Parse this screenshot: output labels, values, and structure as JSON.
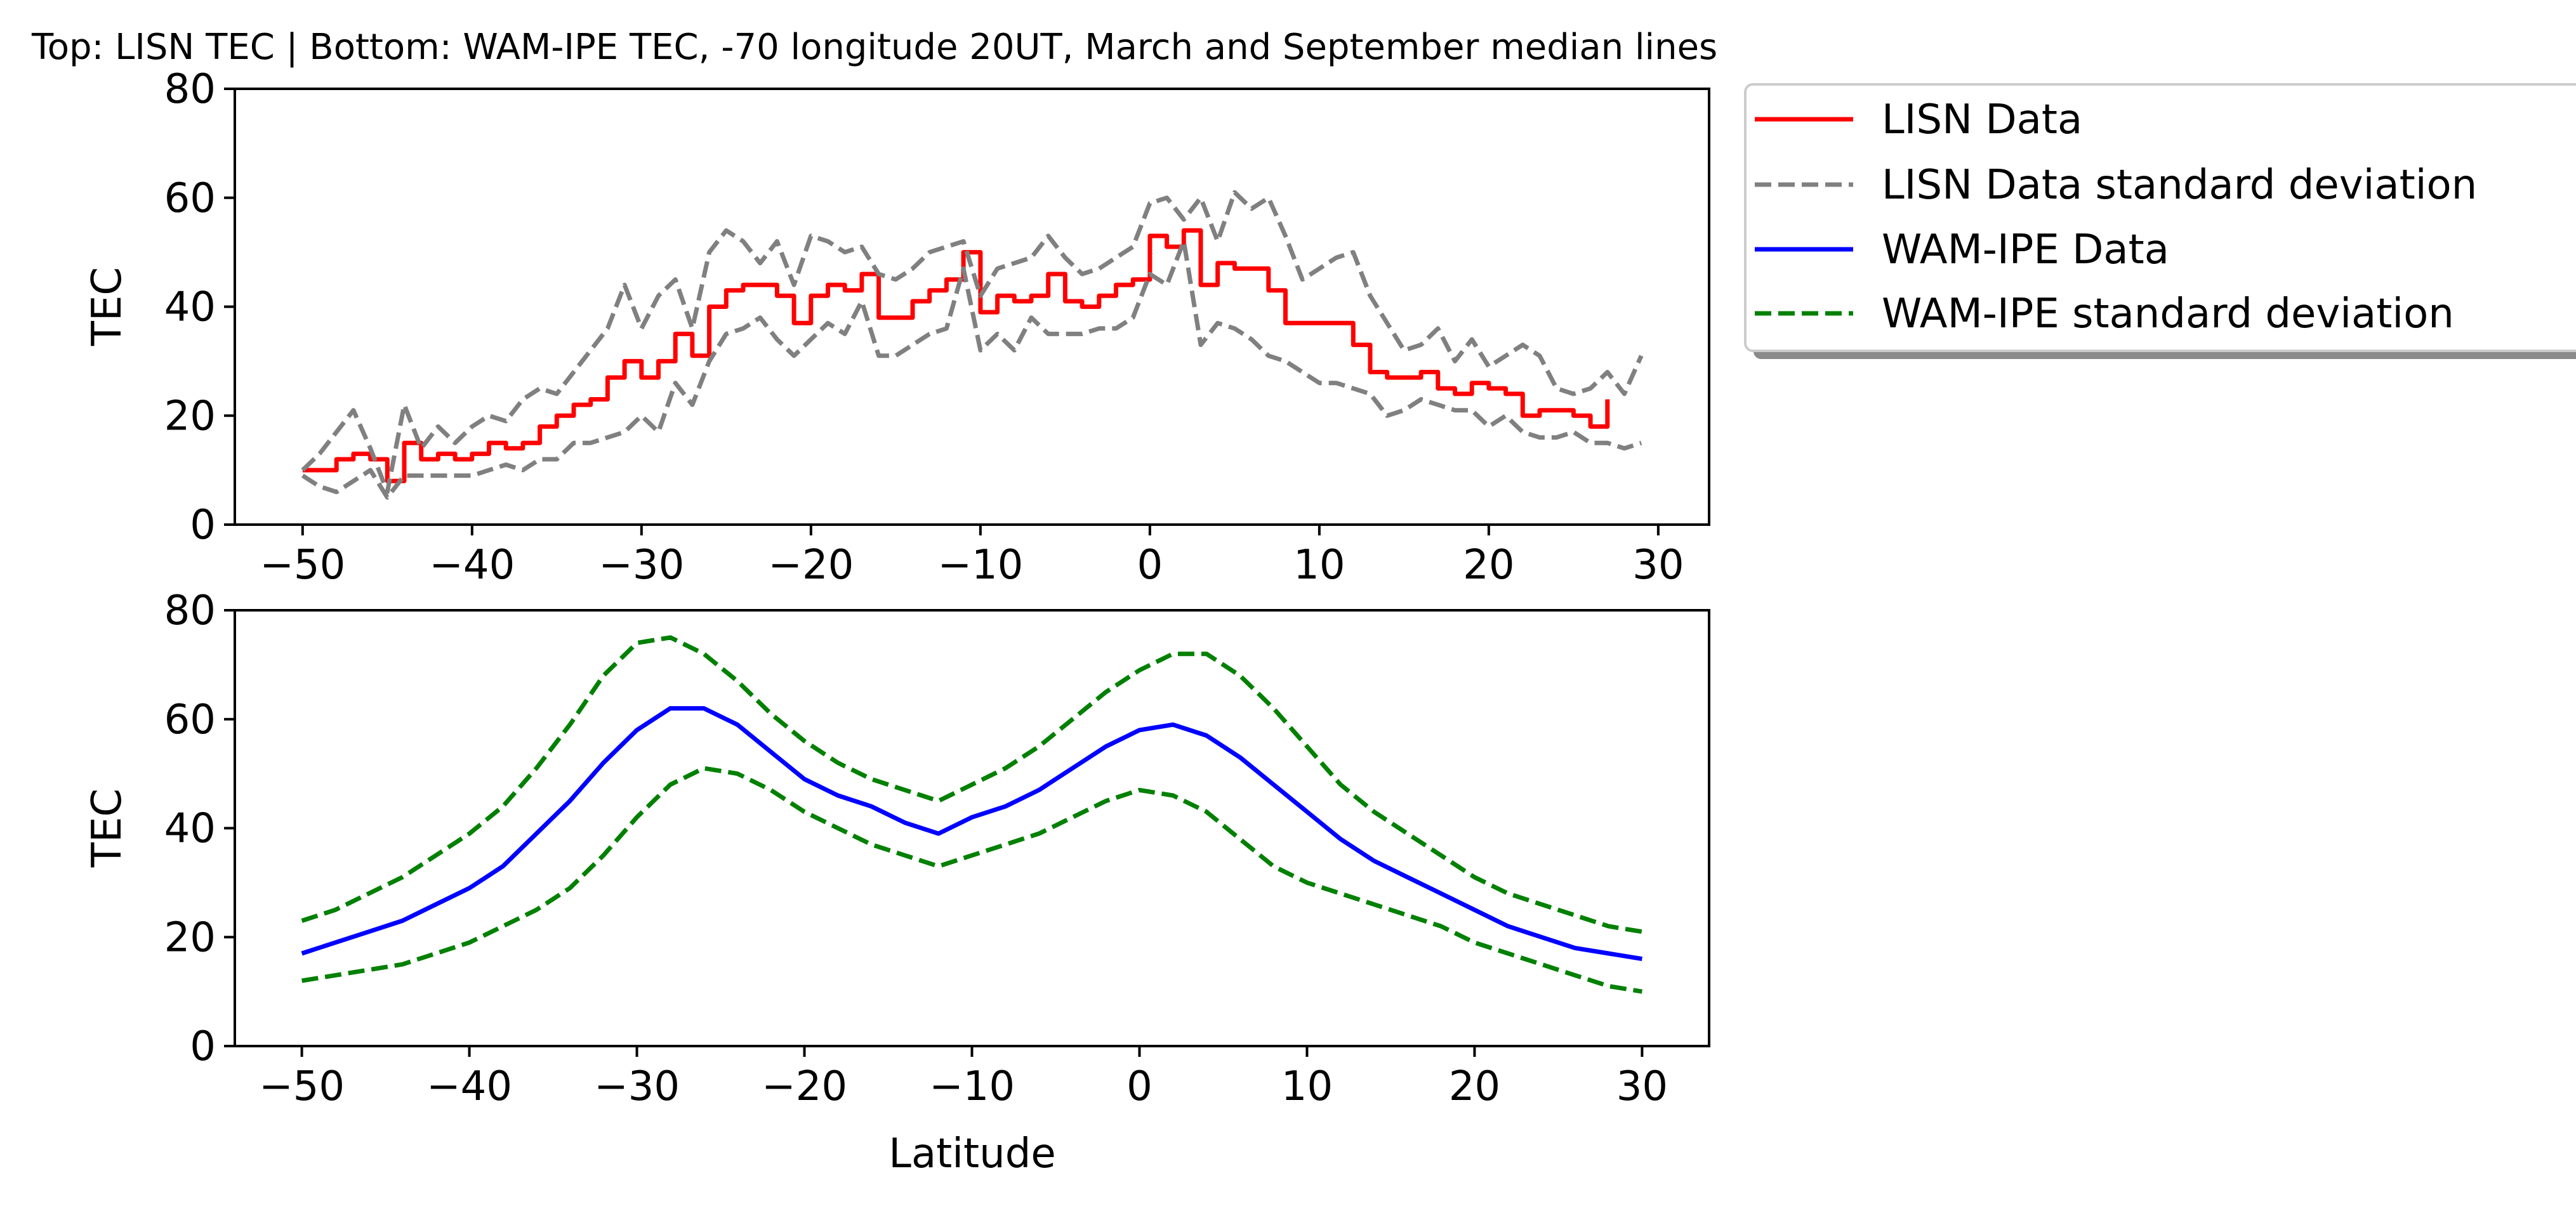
{
  "figure": {
    "title": "Top: LISN TEC | Bottom: WAM-IPE TEC, -70 longitude 20UT, March and September median lines"
  },
  "legend": {
    "placement": "outside upper-right",
    "items": [
      {
        "label": "LISN Data",
        "color": "#ff0000",
        "dash": "solid"
      },
      {
        "label": "LISN Data standard deviation",
        "color": "#808080",
        "dash": "dashed"
      },
      {
        "label": "WAM-IPE Data",
        "color": "#0000ff",
        "dash": "solid"
      },
      {
        "label": "WAM-IPE standard deviation",
        "color": "#008000",
        "dash": "dashed"
      }
    ]
  },
  "chart_data": [
    {
      "type": "line",
      "title": "",
      "xlabel": "",
      "ylabel": "TEC",
      "xlim": [
        -54,
        33
      ],
      "ylim": [
        0,
        80
      ],
      "xticks": [
        -50,
        -40,
        -30,
        -20,
        -10,
        0,
        10,
        20,
        30
      ],
      "yticks": [
        0,
        20,
        40,
        60,
        80
      ],
      "grid": false,
      "series": [
        {
          "name": "LISN Data",
          "color": "#ff0000",
          "dash": "solid",
          "x": [
            -50,
            -49,
            -48,
            -47,
            -46,
            -45,
            -44,
            -43,
            -42,
            -41,
            -40,
            -39,
            -38,
            -37,
            -36,
            -35,
            -34,
            -33,
            -32,
            -31,
            -30,
            -29,
            -28,
            -27,
            -26,
            -25,
            -24,
            -23,
            -22,
            -21,
            -20,
            -19,
            -18,
            -17,
            -16,
            -15,
            -14,
            -13,
            -12,
            -11,
            -10,
            -9,
            -8,
            -7,
            -6,
            -5,
            -4,
            -3,
            -2,
            -1,
            0,
            1,
            2,
            3,
            4,
            5,
            6,
            7,
            8,
            9,
            10,
            11,
            12,
            13,
            14,
            15,
            16,
            17,
            18,
            19,
            20,
            21,
            22,
            23,
            24,
            25,
            26,
            27
          ],
          "y": [
            10,
            10,
            12,
            13,
            12,
            8,
            15,
            12,
            13,
            12,
            13,
            15,
            14,
            15,
            18,
            20,
            22,
            23,
            27,
            30,
            27,
            30,
            35,
            31,
            40,
            43,
            44,
            44,
            42,
            37,
            42,
            44,
            43,
            46,
            38,
            38,
            41,
            43,
            45,
            50,
            39,
            42,
            41,
            42,
            46,
            41,
            40,
            42,
            44,
            45,
            53,
            51,
            54,
            44,
            48,
            47,
            47,
            43,
            37,
            37,
            37,
            37,
            33,
            28,
            27,
            27,
            28,
            25,
            24,
            26,
            25,
            24,
            20,
            21,
            21,
            20,
            18,
            23
          ]
        },
        {
          "name": "LISN Data standard deviation",
          "color": "#808080",
          "dash": "dashed",
          "x": [
            -50,
            -49,
            -48,
            -47,
            -46,
            -45,
            -44,
            -43,
            -42,
            -41,
            -40,
            -39,
            -38,
            -37,
            -36,
            -35,
            -34,
            -33,
            -32,
            -31,
            -30,
            -29,
            -28,
            -27,
            -26,
            -25,
            -24,
            -23,
            -22,
            -21,
            -20,
            -19,
            -18,
            -17,
            -16,
            -15,
            -14,
            -13,
            -12,
            -11,
            -10,
            -9,
            -8,
            -7,
            -6,
            -5,
            -4,
            -3,
            -2,
            -1,
            0,
            1,
            2,
            3,
            4,
            5,
            6,
            7,
            8,
            9,
            10,
            11,
            12,
            13,
            14,
            15,
            16,
            17,
            18,
            19,
            20,
            21,
            22,
            23,
            24,
            25,
            26,
            27,
            28,
            29
          ],
          "y": [
            10,
            13,
            17,
            21,
            14,
            6,
            22,
            14,
            18,
            15,
            18,
            20,
            19,
            23,
            25,
            24,
            28,
            32,
            36,
            44,
            36,
            42,
            45,
            36,
            50,
            54,
            52,
            48,
            52,
            44,
            53,
            52,
            50,
            51,
            46,
            45,
            47,
            50,
            51,
            52,
            42,
            47,
            48,
            49,
            53,
            49,
            46,
            47,
            49,
            51,
            59,
            60,
            56,
            60,
            52,
            61,
            58,
            60,
            53,
            45,
            47,
            49,
            50,
            42,
            37,
            32,
            33,
            36,
            30,
            34,
            29,
            31,
            33,
            31,
            25,
            24,
            25,
            28,
            24,
            31
          ]
        },
        {
          "name": "LISN Data standard deviation (lower)",
          "color": "#808080",
          "dash": "dashed",
          "x": [
            -50,
            -49,
            -48,
            -47,
            -46,
            -45,
            -44,
            -43,
            -42,
            -41,
            -40,
            -39,
            -38,
            -37,
            -36,
            -35,
            -34,
            -33,
            -32,
            -31,
            -30,
            -29,
            -28,
            -27,
            -26,
            -25,
            -24,
            -23,
            -22,
            -21,
            -20,
            -19,
            -18,
            -17,
            -16,
            -15,
            -14,
            -13,
            -12,
            -11,
            -10,
            -9,
            -8,
            -7,
            -6,
            -5,
            -4,
            -3,
            -2,
            -1,
            0,
            1,
            2,
            3,
            4,
            5,
            6,
            7,
            8,
            9,
            10,
            11,
            12,
            13,
            14,
            15,
            16,
            17,
            18,
            19,
            20,
            21,
            22,
            23,
            24,
            25,
            26,
            27,
            28,
            29
          ],
          "y": [
            9,
            7,
            6,
            8,
            10,
            5,
            9,
            9,
            9,
            9,
            9,
            10,
            11,
            10,
            12,
            12,
            15,
            15,
            16,
            17,
            20,
            17,
            26,
            22,
            30,
            35,
            36,
            38,
            34,
            31,
            34,
            37,
            35,
            41,
            31,
            31,
            33,
            35,
            36,
            47,
            32,
            35,
            32,
            38,
            35,
            35,
            35,
            36,
            36,
            38,
            46,
            44,
            52,
            33,
            37,
            36,
            34,
            31,
            30,
            28,
            26,
            26,
            25,
            24,
            20,
            21,
            23,
            22,
            21,
            21,
            18,
            20,
            17,
            16,
            16,
            17,
            15,
            15,
            14,
            15
          ]
        }
      ]
    },
    {
      "type": "line",
      "title": "",
      "xlabel": "Latitude",
      "ylabel": "TEC",
      "xlim": [
        -54,
        34
      ],
      "ylim": [
        0,
        80
      ],
      "xticks": [
        -50,
        -40,
        -30,
        -20,
        -10,
        0,
        10,
        20,
        30
      ],
      "yticks": [
        0,
        20,
        40,
        60,
        80
      ],
      "grid": false,
      "series": [
        {
          "name": "WAM-IPE Data",
          "color": "#0000ff",
          "dash": "solid",
          "x": [
            -50,
            -48,
            -46,
            -44,
            -42,
            -40,
            -38,
            -36,
            -34,
            -32,
            -30,
            -28,
            -26,
            -24,
            -22,
            -20,
            -18,
            -16,
            -14,
            -12,
            -10,
            -8,
            -6,
            -4,
            -2,
            0,
            2,
            4,
            6,
            8,
            10,
            12,
            14,
            16,
            18,
            20,
            22,
            24,
            26,
            28,
            30
          ],
          "y": [
            17,
            19,
            21,
            23,
            26,
            29,
            33,
            39,
            45,
            52,
            58,
            62,
            62,
            59,
            54,
            49,
            46,
            44,
            41,
            39,
            42,
            44,
            47,
            51,
            55,
            58,
            59,
            57,
            53,
            48,
            43,
            38,
            34,
            31,
            28,
            25,
            22,
            20,
            18,
            17,
            16
          ]
        },
        {
          "name": "WAM-IPE standard deviation",
          "color": "#008000",
          "dash": "dashed",
          "x": [
            -50,
            -48,
            -46,
            -44,
            -42,
            -40,
            -38,
            -36,
            -34,
            -32,
            -30,
            -28,
            -26,
            -24,
            -22,
            -20,
            -18,
            -16,
            -14,
            -12,
            -10,
            -8,
            -6,
            -4,
            -2,
            0,
            2,
            4,
            6,
            8,
            10,
            12,
            14,
            16,
            18,
            20,
            22,
            24,
            26,
            28,
            30
          ],
          "y": [
            23,
            25,
            28,
            31,
            35,
            39,
            44,
            51,
            59,
            68,
            74,
            75,
            72,
            67,
            61,
            56,
            52,
            49,
            47,
            45,
            48,
            51,
            55,
            60,
            65,
            69,
            72,
            72,
            68,
            62,
            55,
            48,
            43,
            39,
            35,
            31,
            28,
            26,
            24,
            22,
            21
          ]
        },
        {
          "name": "WAM-IPE standard deviation (lower)",
          "color": "#008000",
          "dash": "dashed",
          "x": [
            -50,
            -48,
            -46,
            -44,
            -42,
            -40,
            -38,
            -36,
            -34,
            -32,
            -30,
            -28,
            -26,
            -24,
            -22,
            -20,
            -18,
            -16,
            -14,
            -12,
            -10,
            -8,
            -6,
            -4,
            -2,
            0,
            2,
            4,
            6,
            8,
            10,
            12,
            14,
            16,
            18,
            20,
            22,
            24,
            26,
            28,
            30
          ],
          "y": [
            12,
            13,
            14,
            15,
            17,
            19,
            22,
            25,
            29,
            35,
            42,
            48,
            51,
            50,
            47,
            43,
            40,
            37,
            35,
            33,
            35,
            37,
            39,
            42,
            45,
            47,
            46,
            43,
            38,
            33,
            30,
            28,
            26,
            24,
            22,
            19,
            17,
            15,
            13,
            11,
            10
          ]
        }
      ]
    }
  ]
}
